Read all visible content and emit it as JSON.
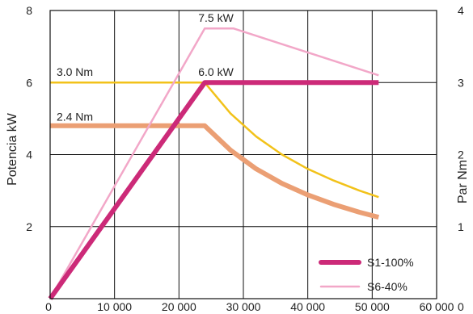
{
  "chart_data": {
    "type": "line",
    "title": "",
    "xlabel": "",
    "ylabel": "Potencia  kW",
    "y2label": "Par  Nm",
    "xlim": [
      0,
      60000
    ],
    "ylim": [
      0,
      8
    ],
    "y2lim": [
      0,
      4
    ],
    "x_ticks": [
      {
        "value": 0,
        "label": "0"
      },
      {
        "value": 10000,
        "label": "10 000"
      },
      {
        "value": 20000,
        "label": "20 000"
      },
      {
        "value": 30000,
        "label": "30 000"
      },
      {
        "value": 40000,
        "label": "40 000"
      },
      {
        "value": 50000,
        "label": "50 000"
      },
      {
        "value": 60000,
        "label": "60 000"
      }
    ],
    "y_ticks": [
      {
        "value": 2,
        "label": "2"
      },
      {
        "value": 4,
        "label": "4"
      },
      {
        "value": 6,
        "label": "6"
      },
      {
        "value": 8,
        "label": "8"
      }
    ],
    "y2_ticks": [
      {
        "value": 0,
        "label": "0"
      },
      {
        "value": 1,
        "label": "1"
      },
      {
        "value": 2,
        "label": "2"
      },
      {
        "value": 3,
        "label": "3"
      },
      {
        "value": 4,
        "label": "4"
      }
    ],
    "grid": true,
    "legend_position": "bottom-right",
    "series": [
      {
        "name": "",
        "axis": "y2",
        "color": "#f2c21a",
        "width": 2.5,
        "x": [
          0,
          24000,
          28000,
          32000,
          36000,
          40000,
          44000,
          48000,
          51000
        ],
        "y": [
          3.0,
          3.0,
          2.57,
          2.25,
          2.0,
          1.8,
          1.64,
          1.5,
          1.41
        ]
      },
      {
        "name": "",
        "axis": "y2",
        "color": "#eb9f74",
        "width": 6,
        "x": [
          0,
          24000,
          28000,
          32000,
          36000,
          40000,
          44000,
          48000,
          51000
        ],
        "y": [
          2.4,
          2.4,
          2.06,
          1.8,
          1.6,
          1.44,
          1.31,
          1.2,
          1.13
        ]
      },
      {
        "name": "S6-40%",
        "axis": "y",
        "color": "#f2a7c8",
        "width": 2.5,
        "x": [
          0,
          24000,
          28500,
          51000
        ],
        "y": [
          0,
          7.5,
          7.5,
          6.2
        ]
      },
      {
        "name": "S1-100%",
        "axis": "y",
        "color": "#cc2a78",
        "width": 6,
        "x": [
          0,
          24000,
          51000
        ],
        "y": [
          0,
          6.0,
          6.0
        ]
      }
    ],
    "annotations": [
      {
        "text": "7.5 kW",
        "x": 23000,
        "y": 7.6
      },
      {
        "text": "6.0 kW",
        "x": 23000,
        "y": 6.1
      },
      {
        "text": "3.0 Nm",
        "x": 1000,
        "y": 6.1
      },
      {
        "text": "2.4 Nm",
        "x": 1000,
        "y": 4.85
      }
    ]
  }
}
